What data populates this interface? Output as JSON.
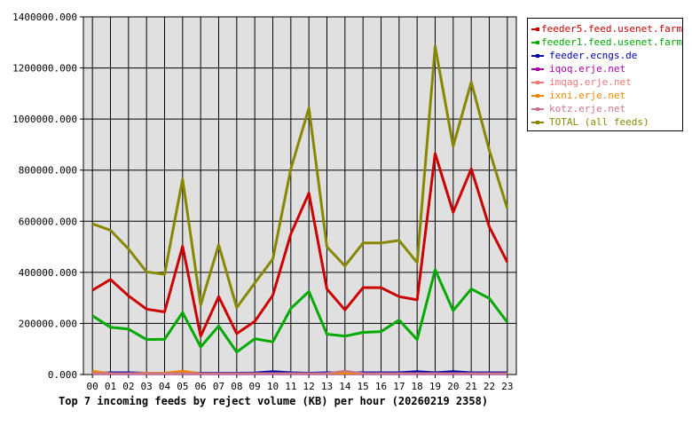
{
  "chart_data": {
    "type": "line",
    "title": "Top 7 incoming feeds by reject volume (KB) per hour (20260219 2358)",
    "xlabel": "",
    "ylabel": "",
    "ylim": [
      0,
      1400000
    ],
    "yticks": [
      "0.000",
      "200000.000",
      "400000.000",
      "600000.000",
      "800000.000",
      "1000000.000",
      "1200000.000",
      "1400000.000"
    ],
    "categories": [
      "00",
      "01",
      "02",
      "03",
      "04",
      "05",
      "06",
      "07",
      "08",
      "09",
      "10",
      "11",
      "12",
      "13",
      "14",
      "15",
      "16",
      "17",
      "18",
      "19",
      "20",
      "21",
      "22",
      "23"
    ],
    "grid": true,
    "legend_position": "top-right",
    "series": [
      {
        "name": "feeder5.feed.usenet.farm",
        "color": "#cc0000",
        "values": [
          330000,
          372000,
          308000,
          256000,
          245000,
          502000,
          150000,
          305000,
          160000,
          208000,
          310000,
          550000,
          710000,
          335000,
          253000,
          340000,
          340000,
          305000,
          292000,
          865000,
          635000,
          805000,
          578000,
          440000
        ]
      },
      {
        "name": "feeder1.feed.usenet.farm",
        "color": "#00aa00",
        "values": [
          230000,
          185000,
          178000,
          137000,
          138000,
          243000,
          108000,
          190000,
          88000,
          140000,
          128000,
          258000,
          325000,
          158000,
          150000,
          165000,
          168000,
          213000,
          137000,
          410000,
          250000,
          335000,
          298000,
          205000
        ]
      },
      {
        "name": "feeder.ecngs.de",
        "color": "#0000aa",
        "values": [
          5000,
          8000,
          8000,
          6000,
          6000,
          8000,
          6000,
          6000,
          6000,
          7000,
          12000,
          8000,
          6000,
          8000,
          8000,
          8000,
          8000,
          8000,
          12000,
          8000,
          12000,
          8000,
          8000,
          8000
        ]
      },
      {
        "name": "iqoq.erje.net",
        "color": "#aa00aa",
        "values": [
          3000,
          3000,
          3000,
          3000,
          3000,
          3000,
          3000,
          3000,
          3000,
          3000,
          3000,
          3000,
          3000,
          3000,
          3000,
          3000,
          3000,
          3000,
          3000,
          3000,
          3000,
          3000,
          3000,
          3000
        ]
      },
      {
        "name": "imqag.erje.net",
        "color": "#ee7777",
        "values": [
          4000,
          4000,
          4000,
          4000,
          4000,
          4000,
          4000,
          4000,
          4000,
          4000,
          4000,
          4000,
          4000,
          4000,
          10000,
          4000,
          4000,
          4000,
          4000,
          4000,
          4000,
          4000,
          4000,
          4000
        ]
      },
      {
        "name": "ixni.erje.net",
        "color": "#ee8800",
        "values": [
          14000,
          4000,
          4000,
          6000,
          6000,
          14000,
          4000,
          4000,
          4000,
          4000,
          4000,
          4000,
          4000,
          4000,
          4000,
          4000,
          4000,
          4000,
          4000,
          4000,
          4000,
          4000,
          4000,
          4000
        ]
      },
      {
        "name": "kotz.erje.net",
        "color": "#cc7788",
        "values": [
          4000,
          4000,
          4000,
          4000,
          4000,
          4000,
          4000,
          4000,
          4000,
          4000,
          4000,
          4000,
          4000,
          4000,
          14000,
          4000,
          4000,
          4000,
          4000,
          4000,
          4000,
          4000,
          4000,
          4000
        ]
      },
      {
        "name": "TOTAL (all feeds)",
        "color": "#888800",
        "values": [
          590000,
          565000,
          492000,
          402000,
          392000,
          765000,
          272000,
          508000,
          262000,
          358000,
          452000,
          805000,
          1043000,
          500000,
          425000,
          515000,
          515000,
          525000,
          438000,
          1285000,
          893000,
          1145000,
          878000,
          650000
        ]
      }
    ]
  }
}
